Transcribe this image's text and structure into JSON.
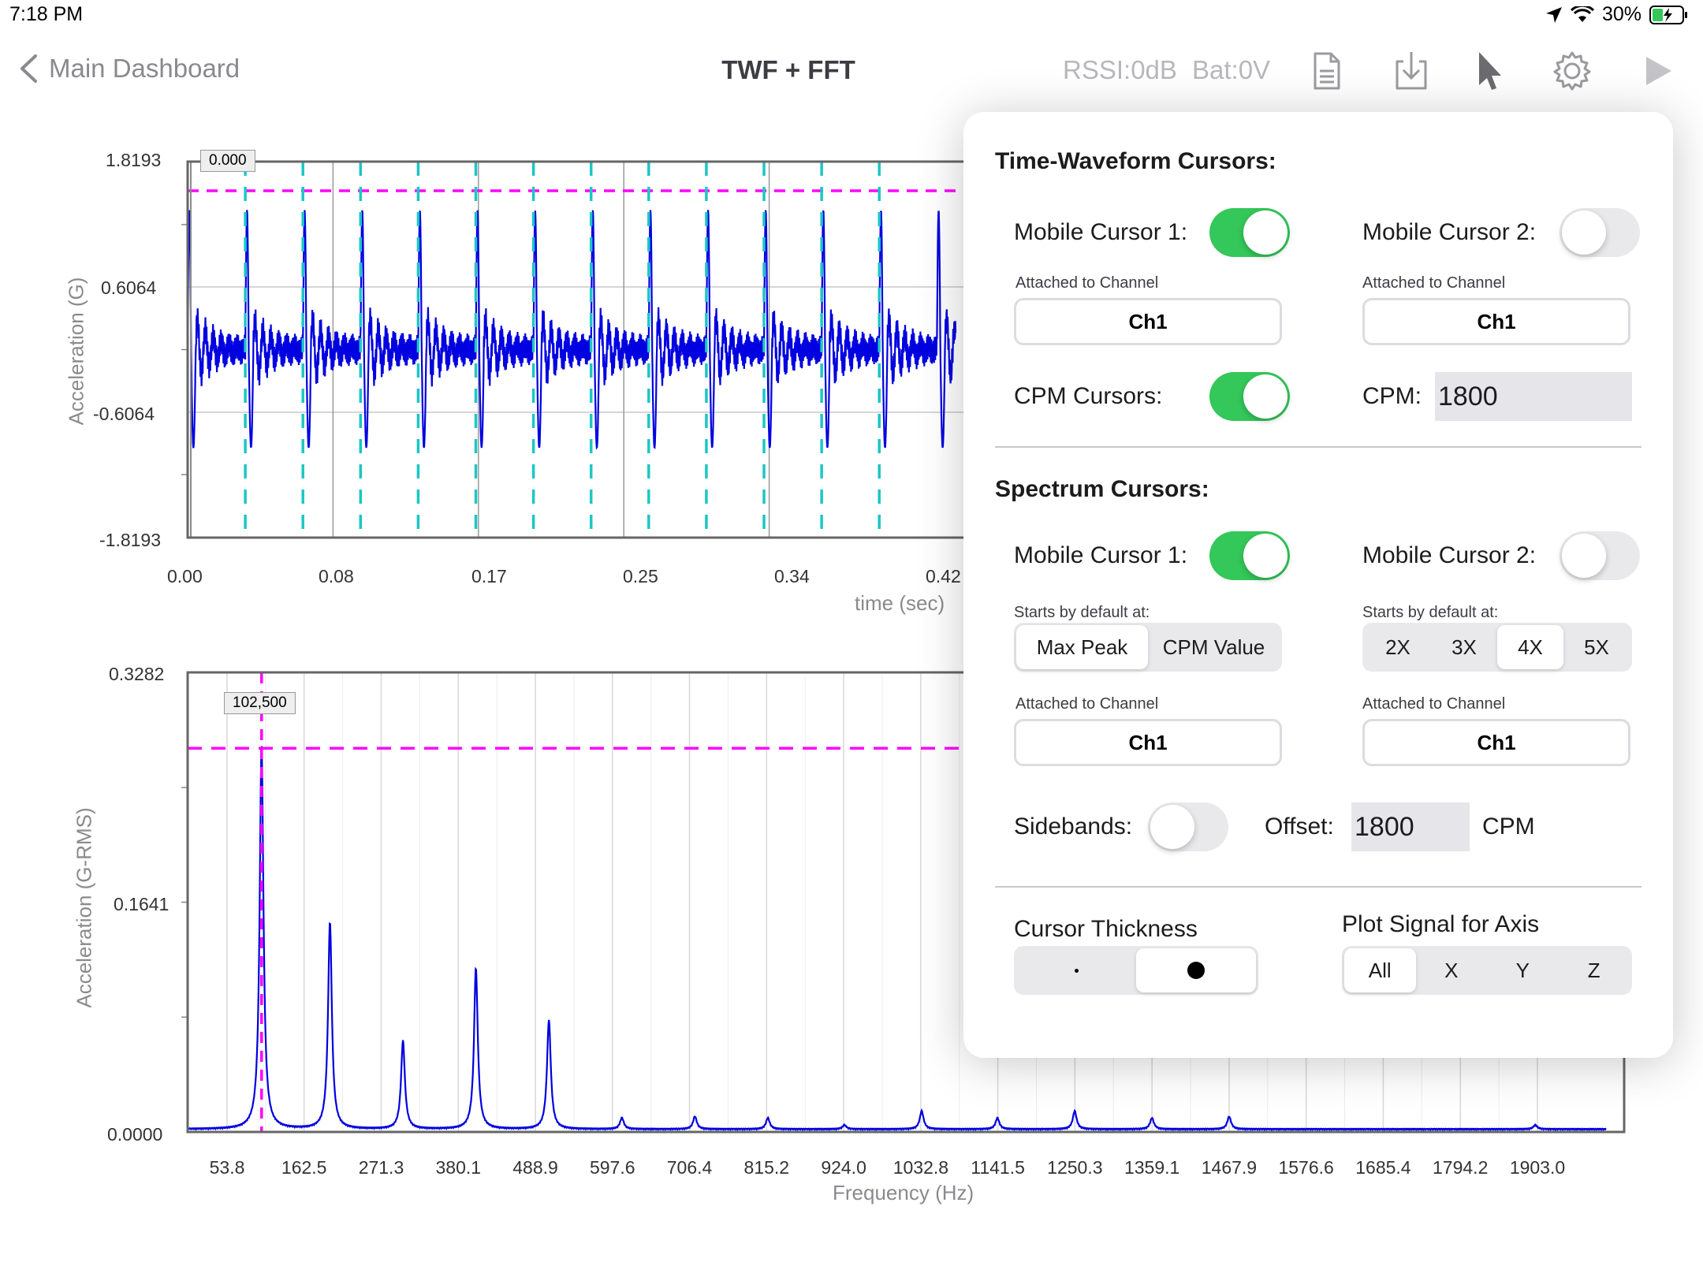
{
  "status": {
    "time": "7:18 PM",
    "battery": "30%"
  },
  "nav": {
    "back_label": "Main Dashboard",
    "title": "TWF + FFT",
    "rssi": "RSSI:0dB",
    "bat": "Bat:0V"
  },
  "twf": {
    "y_ticks": [
      "1.8193",
      "0.6064",
      "-0.6064",
      "-1.8193"
    ],
    "x_ticks": [
      "0.00",
      "0.08",
      "0.17",
      "0.25",
      "0.34",
      "0.42"
    ],
    "ylabel": "Acceleration (G)",
    "xlabel": "time (sec)",
    "cursor_tag": "0.000"
  },
  "fft": {
    "y_ticks": [
      "0.3282",
      "0.1641",
      "0.0000"
    ],
    "x_ticks": [
      "53.8",
      "162.5",
      "271.3",
      "380.1",
      "488.9",
      "597.6",
      "706.4",
      "815.2",
      "924.0",
      "1032.8",
      "1141.5",
      "1250.3",
      "1359.1",
      "1467.9",
      "1576.6",
      "1685.4",
      "1794.2",
      "1903.0"
    ],
    "ylabel": "Acceleration (G-RMS)",
    "xlabel": "Frequency (Hz)",
    "cursor_tag": "102,500"
  },
  "chart_data": [
    {
      "type": "line",
      "title": "",
      "xlabel": "time (sec)",
      "ylabel": "Acceleration (G)",
      "xlim": [
        0.0,
        0.42
      ],
      "ylim": [
        -1.8193,
        1.8193
      ],
      "grid": true,
      "series": [
        {
          "pattern": "periodic impacts",
          "period": 0.0333,
          "peak_max": 1.35,
          "peak_min": -0.95
        }
      ],
      "cursors": {
        "horizontal_level": 1.36,
        "vertical_start": 0.0,
        "cpm_spacing_sec": 0.0333
      }
    },
    {
      "type": "line",
      "title": "",
      "xlabel": "Frequency (Hz)",
      "ylabel": "Acceleration (G-RMS)",
      "ylim": [
        0.0,
        0.3282
      ],
      "grid": true,
      "series": [
        {
          "peaks": [
            {
              "freq": 102.5,
              "amp": 0.274
            },
            {
              "freq": 199.0,
              "amp": 0.148
            },
            {
              "freq": 302.0,
              "amp": 0.063
            },
            {
              "freq": 405.0,
              "amp": 0.115
            },
            {
              "freq": 508.0,
              "amp": 0.078
            },
            {
              "freq": 611.0,
              "amp": 0.008
            },
            {
              "freq": 714.0,
              "amp": 0.009
            },
            {
              "freq": 817.0,
              "amp": 0.008
            },
            {
              "freq": 925.0,
              "amp": 0.003
            },
            {
              "freq": 1034.0,
              "amp": 0.013
            },
            {
              "freq": 1141.0,
              "amp": 0.008
            },
            {
              "freq": 1250.0,
              "amp": 0.013
            },
            {
              "freq": 1359.0,
              "amp": 0.008
            },
            {
              "freq": 1468.0,
              "amp": 0.009
            },
            {
              "freq": 1900.0,
              "amp": 0.003
            }
          ]
        }
      ],
      "cursors": {
        "vertical_freq": 102.5,
        "horizontal_level": 0.274
      }
    }
  ],
  "popover": {
    "twf_title": "Time-Waveform Cursors:",
    "mc1_label": "Mobile Cursor 1:",
    "mc2_label": "Mobile Cursor 2:",
    "attached_label": "Attached to Channel",
    "channel": "Ch1",
    "cpm_cursors_label": "CPM Cursors:",
    "cpm_label": "CPM:",
    "cpm_value": "1800",
    "spec_title": "Spectrum Cursors:",
    "starts_label": "Starts by default at:",
    "seg1": [
      "Max Peak",
      "CPM Value"
    ],
    "seg2": [
      "2X",
      "3X",
      "4X",
      "5X"
    ],
    "sidebands_label": "Sidebands:",
    "offset_label": "Offset:",
    "offset_value": "1800",
    "offset_unit": "CPM",
    "thickness_label": "Cursor Thickness",
    "plot_signal_label": "Plot Signal for Axis",
    "axis_seg": [
      "All",
      "X",
      "Y",
      "Z"
    ]
  }
}
